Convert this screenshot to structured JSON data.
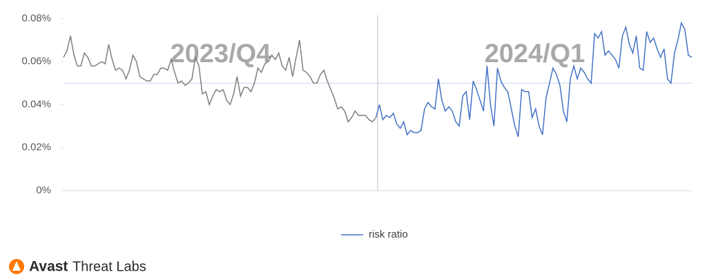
{
  "chart_data": {
    "type": "line",
    "series": [
      {
        "color": "#7f7f7f",
        "values": [
          0.062,
          0.065,
          0.072,
          0.063,
          0.058,
          0.058,
          0.064,
          0.062,
          0.058,
          0.058,
          0.059,
          0.06,
          0.059,
          0.068,
          0.061,
          0.056,
          0.057,
          0.056,
          0.052,
          0.056,
          0.063,
          0.06,
          0.053,
          0.052,
          0.051,
          0.051,
          0.054,
          0.054,
          0.057,
          0.057,
          0.056,
          0.061,
          0.055,
          0.05,
          0.051,
          0.049,
          0.05,
          0.052,
          0.062,
          0.058,
          0.045,
          0.046,
          0.04,
          0.044,
          0.047,
          0.046,
          0.047,
          0.042,
          0.04,
          0.045,
          0.053,
          0.044,
          0.048,
          0.048,
          0.046,
          0.05,
          0.057,
          0.055,
          0.059,
          0.06,
          0.063,
          0.061,
          0.064,
          0.058,
          0.056,
          0.062,
          0.053,
          0.062,
          0.07,
          0.056,
          0.055,
          0.053,
          0.05,
          0.05,
          0.054,
          0.056,
          0.051,
          0.047,
          0.043,
          0.038,
          0.039,
          0.037,
          0.032,
          0.034,
          0.037,
          0.035,
          0.035,
          0.035,
          0.033,
          0.032,
          0.034
        ]
      },
      {
        "name": "risk ratio",
        "color": "#4472c4",
        "values": [
          0.04,
          0.033,
          0.035,
          0.034,
          0.036,
          0.031,
          0.029,
          0.032,
          0.026,
          0.028,
          0.027,
          0.027,
          0.028,
          0.038,
          0.041,
          0.039,
          0.038,
          0.052,
          0.042,
          0.037,
          0.039,
          0.037,
          0.032,
          0.03,
          0.044,
          0.046,
          0.033,
          0.051,
          0.047,
          0.042,
          0.037,
          0.058,
          0.04,
          0.03,
          0.057,
          0.051,
          0.048,
          0.046,
          0.038,
          0.03,
          0.025,
          0.047,
          0.046,
          0.046,
          0.034,
          0.038,
          0.03,
          0.026,
          0.043,
          0.05,
          0.057,
          0.054,
          0.049,
          0.037,
          0.032,
          0.052,
          0.058,
          0.052,
          0.057,
          0.055,
          0.052,
          0.05,
          0.073,
          0.071,
          0.074,
          0.063,
          0.065,
          0.063,
          0.061,
          0.057,
          0.072,
          0.076,
          0.068,
          0.064,
          0.072,
          0.057,
          0.056,
          0.074,
          0.069,
          0.071,
          0.066,
          0.062,
          0.066,
          0.052,
          0.05,
          0.064,
          0.07,
          0.078,
          0.075,
          0.063,
          0.062
        ]
      }
    ],
    "annotations": [
      "2023/Q4",
      "2024/Q1"
    ],
    "reference_line": {
      "value": 0.05,
      "color": "#c5d5f0"
    },
    "ylim": [
      0,
      0.08
    ],
    "yticks": [
      {
        "value": 0,
        "label": "0%"
      },
      {
        "value": 0.02,
        "label": "0.02%"
      },
      {
        "value": 0.04,
        "label": "0.04%"
      },
      {
        "value": 0.06,
        "label": "0.06%"
      },
      {
        "value": 0.08,
        "label": "0.08%"
      }
    ],
    "grid": false
  },
  "footer": {
    "brand": "Avast",
    "product": "Threat Labs"
  }
}
